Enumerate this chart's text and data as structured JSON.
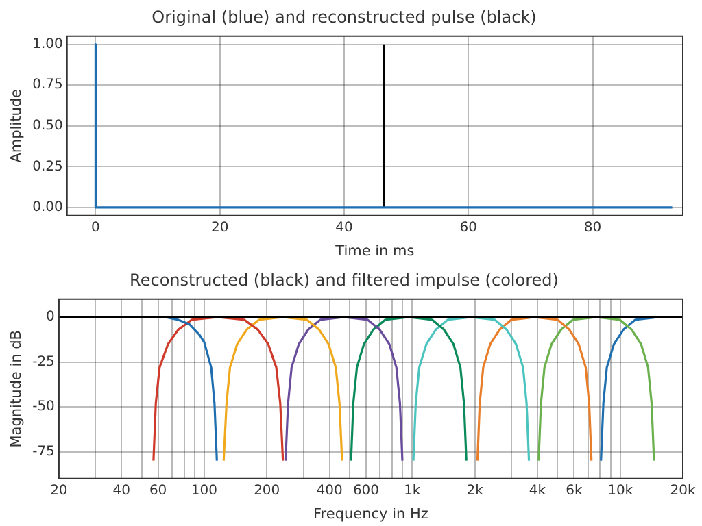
{
  "chart_data": [
    {
      "type": "line",
      "title": "Original (blue) and reconstructed pulse (black)",
      "xlabel": "Time in ms",
      "ylabel": "Amplitude",
      "xlim": [
        -4.6,
        94.5
      ],
      "ylim": [
        -0.05,
        1.05
      ],
      "xticks": [
        0,
        20,
        40,
        60,
        80
      ],
      "yticks": [
        {
          "value": 0,
          "label": "0.00"
        },
        {
          "value": 0.25,
          "label": "0.25"
        },
        {
          "value": 0.5,
          "label": "0.50"
        },
        {
          "value": 0.75,
          "label": "0.75"
        },
        {
          "value": 1,
          "label": "1.00"
        }
      ],
      "grid": true,
      "legend": false,
      "marker": "none",
      "line_style": "solid",
      "series": [
        {
          "color": "#1f6fb0",
          "x": [
            0,
            0,
            92.8
          ],
          "values": [
            1,
            0,
            0
          ]
        },
        {
          "color": "#000000",
          "x": [
            46.4,
            46.4
          ],
          "values": [
            0,
            1
          ]
        }
      ]
    },
    {
      "type": "line",
      "title": "Reconstructed (black) and filtered impulse (colored)",
      "xlabel": "Frequency in Hz",
      "ylabel": "Magnitude in dB",
      "log": "x",
      "xlim": [
        20,
        20000
      ],
      "ylim": [
        -90,
        10
      ],
      "xticks": [
        20,
        {
          "value": 30,
          "label": null
        },
        40,
        {
          "value": 50,
          "label": null
        },
        60,
        {
          "value": 70,
          "label": null
        },
        {
          "value": 80,
          "label": null
        },
        {
          "value": 90,
          "label": null
        },
        100,
        200,
        {
          "value": 300,
          "label": null
        },
        400,
        {
          "value": 500,
          "label": null
        },
        600,
        {
          "value": 700,
          "label": null
        },
        {
          "value": 800,
          "label": null
        },
        {
          "value": 900,
          "label": null
        },
        {
          "value": 1000,
          "label": "1k"
        },
        {
          "value": 2000,
          "label": "2k"
        },
        {
          "value": 3000,
          "label": null
        },
        {
          "value": 4000,
          "label": "4k"
        },
        {
          "value": 5000,
          "label": null
        },
        {
          "value": 6000,
          "label": "6k"
        },
        {
          "value": 7000,
          "label": null
        },
        {
          "value": 8000,
          "label": null
        },
        {
          "value": 9000,
          "label": null
        },
        {
          "value": 10000,
          "label": "10k"
        },
        {
          "value": 20000,
          "label": "20k"
        }
      ],
      "yticks": [
        -75,
        -50,
        -25,
        0
      ],
      "grid": true,
      "legend": false,
      "marker": "none",
      "line_style": "solid",
      "series": [
        {
          "color": "#000000",
          "x": [
            20,
            20000
          ],
          "values": [
            0,
            0
          ]
        },
        {
          "color": "#1f6fb0",
          "x": [
            20,
            65,
            75,
            85,
            95,
            100,
            108,
            112,
            115
          ],
          "values": [
            0,
            0,
            -1.5,
            -4,
            -10,
            -14,
            -28,
            -48,
            -80
          ]
        },
        {
          "color": "#d03a2a",
          "x": [
            57,
            58.5,
            61,
            67,
            75,
            87,
            116,
            156,
            181,
            203,
            222,
            232,
            239
          ],
          "values": [
            -80,
            -48,
            -28,
            -15,
            -7,
            -1.5,
            0,
            -1.5,
            -7,
            -15,
            -28,
            -48,
            -80
          ]
        },
        {
          "color": "#f0a81c",
          "x": [
            124,
            128,
            133,
            144,
            160,
            183,
            239,
            312,
            357,
            396,
            429,
            447,
            460
          ],
          "values": [
            -80,
            -48,
            -28,
            -15,
            -7,
            -1.5,
            0,
            -1.5,
            -7,
            -15,
            -28,
            -48,
            -80
          ]
        },
        {
          "color": "#6a4c9c",
          "x": [
            246,
            253,
            263,
            285,
            316,
            361,
            470,
            611,
            698,
            776,
            839,
            873,
            897
          ],
          "values": [
            -80,
            -48,
            -28,
            -15,
            -7,
            -1.5,
            0,
            -1.5,
            -7,
            -15,
            -28,
            -48,
            -80
          ]
        },
        {
          "color": "#0a8a5a",
          "x": [
            508,
            521,
            542,
            586,
            650,
            741,
            961,
            1248,
            1422,
            1578,
            1705,
            1774,
            1821
          ],
          "values": [
            -80,
            -48,
            -28,
            -15,
            -7,
            -1.5,
            0,
            -1.5,
            -7,
            -15,
            -28,
            -48,
            -80
          ]
        },
        {
          "color": "#4bc4bf",
          "x": [
            1013,
            1040,
            1081,
            1170,
            1298,
            1480,
            1921,
            2496,
            2844,
            3155,
            3411,
            3547,
            3642
          ],
          "values": [
            -80,
            -48,
            -28,
            -15,
            -7,
            -1.5,
            0,
            -1.5,
            -7,
            -15,
            -28,
            -48,
            -80
          ]
        },
        {
          "color": "#e87d2a",
          "x": [
            2059,
            2112,
            2195,
            2372,
            2631,
            2993,
            3871,
            5009,
            5694,
            6316,
            6825,
            7091,
            7275
          ],
          "values": [
            -80,
            -48,
            -28,
            -15,
            -7,
            -1.5,
            0,
            -1.5,
            -7,
            -15,
            -28,
            -48,
            -80
          ]
        },
        {
          "color": "#6ab04c",
          "x": [
            4052,
            4160,
            4324,
            4676,
            5192,
            5916,
            7676,
            9964,
            11352,
            12596,
            13616,
            14160,
            14540
          ],
          "values": [
            -80,
            -48,
            -28,
            -15,
            -7,
            -1.5,
            0,
            -1.5,
            -7,
            -15,
            -28,
            -48,
            -80
          ]
        },
        {
          "color": "#1f6fb0",
          "x": [
            8085,
            8300,
            8625,
            9330,
            10360,
            11800,
            15300,
            20000
          ],
          "values": [
            -80,
            -48,
            -28,
            -15,
            -7,
            -1.5,
            0,
            0
          ]
        }
      ]
    }
  ]
}
